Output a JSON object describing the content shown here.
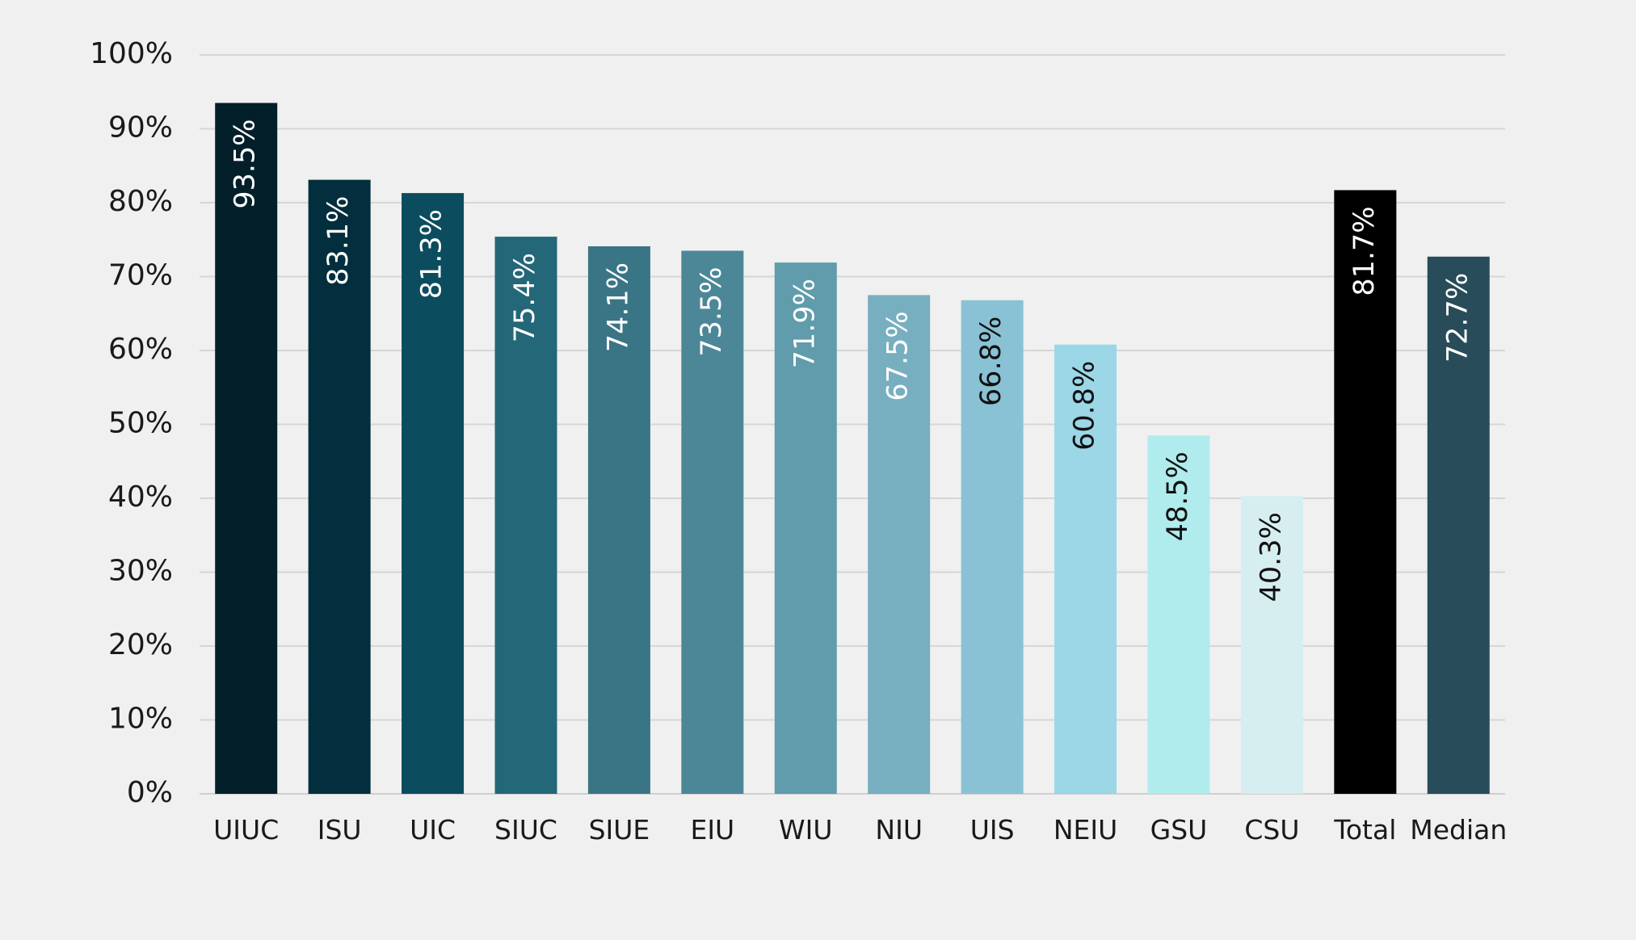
{
  "chart_data": {
    "type": "bar",
    "categories": [
      "UIUC",
      "ISU",
      "UIC",
      "SIUC",
      "SIUE",
      "EIU",
      "WIU",
      "NIU",
      "UIS",
      "NEIU",
      "GSU",
      "CSU",
      "Total",
      "Median"
    ],
    "values": [
      93.5,
      83.1,
      81.3,
      75.4,
      74.1,
      73.5,
      71.9,
      67.5,
      66.8,
      60.8,
      48.5,
      40.3,
      81.7,
      72.7
    ],
    "data_labels": [
      "93.5%",
      "83.1%",
      "81.3%",
      "75.4%",
      "74.1%",
      "73.5%",
      "71.9%",
      "67.5%",
      "66.8%",
      "60.8%",
      "48.5%",
      "40.3%",
      "81.7%",
      "72.7%"
    ],
    "bar_colors": [
      "#031f2a",
      "#022e3d",
      "#0b4c5e",
      "#246778",
      "#3a7586",
      "#4c8797",
      "#609cab",
      "#77afc0",
      "#89c2d4",
      "#9bd7e6",
      "#b0ebed",
      "#d6eef0",
      "#000000",
      "#284c59"
    ],
    "label_colors": [
      "#ffffff",
      "#ffffff",
      "#ffffff",
      "#ffffff",
      "#ffffff",
      "#ffffff",
      "#ffffff",
      "#ffffff",
      "#111111",
      "#111111",
      "#111111",
      "#111111",
      "#ffffff",
      "#ffffff"
    ],
    "y_ticks": [
      "0%",
      "10%",
      "20%",
      "30%",
      "40%",
      "50%",
      "60%",
      "70%",
      "80%",
      "90%",
      "100%"
    ],
    "ylim": [
      0,
      100
    ],
    "title": "",
    "xlabel": "",
    "ylabel": "",
    "grid": true,
    "legend": "none",
    "background": "#f0f0f0"
  }
}
